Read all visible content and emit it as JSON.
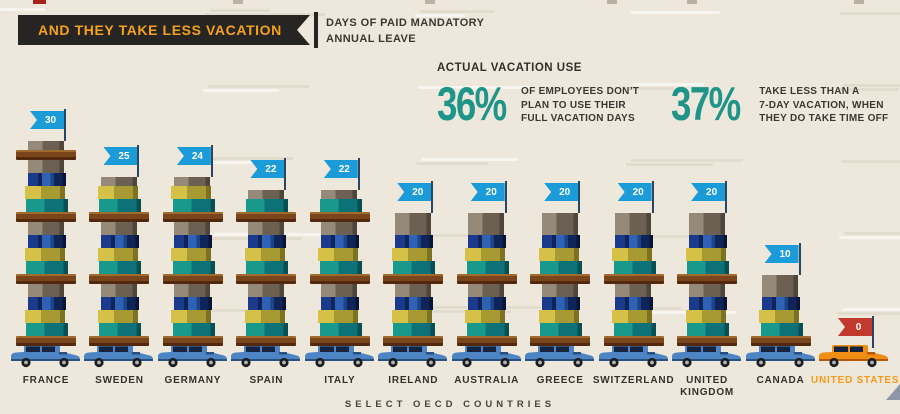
{
  "header": {
    "title": "AND THEY TAKE LESS VACATION",
    "subtitle_line1": "DAYS OF PAID MANDATORY",
    "subtitle_line2": "ANNUAL LEAVE"
  },
  "stats": {
    "heading": "ACTUAL VACATION USE",
    "items": [
      {
        "value": "36%",
        "lines": [
          "OF EMPLOYEES DON’T",
          "PLAN TO USE THEIR",
          "FULL VACATION DAYS"
        ]
      },
      {
        "value": "37%",
        "lines": [
          "TAKE LESS THAN A",
          "7-DAY VACATION, WHEN",
          "THEY DO TAKE TIME OFF"
        ]
      }
    ]
  },
  "footer": {
    "caption": "SELECT OECD COUNTRIES"
  },
  "colors": {
    "background": "#ede8db",
    "ribbon_bg": "#262524",
    "ribbon_text": "#f5a11c",
    "stat_accent": "#1f9489",
    "flag_default": "#1b9bd7",
    "flag_highlight": "#c23a2b",
    "label_default": "#33312c",
    "label_highlight": "#f39a18",
    "car_blue_body": "#4d85c4",
    "car_blue_dark": "#27517f",
    "car_orange_body": "#ef8d15",
    "car_orange_dark": "#b55a0b",
    "car_window": "#142440",
    "luggage_teal": "#18998b",
    "luggage_teal_dark": "#0c7277",
    "luggage_yellow": "#d5c148",
    "luggage_olive": "#a89a33",
    "luggage_navy": "#1b3a8c",
    "luggage_navy_dark": "#0f2459",
    "luggage_blue": "#2f62b5",
    "luggage_taupe": "#958a7a",
    "luggage_taupe_dark": "#6b6052",
    "plank_brown": "#7b451c"
  },
  "chart_data": {
    "type": "bar",
    "title": "Days of paid mandatory annual leave",
    "xlabel": "SELECT OECD COUNTRIES",
    "ylabel": "Days",
    "ylim": [
      0,
      30
    ],
    "unit": "days",
    "categories": [
      "FRANCE",
      "SWEDEN",
      "GERMANY",
      "SPAIN",
      "ITALY",
      "IRELAND",
      "AUSTRALIA",
      "GREECE",
      "SWITZERLAND",
      "UNITED KINGDOM",
      "CANADA",
      "UNITED STATES"
    ],
    "label_lines": [
      [
        "FRANCE"
      ],
      [
        "SWEDEN"
      ],
      [
        "GERMANY"
      ],
      [
        "SPAIN"
      ],
      [
        "ITALY"
      ],
      [
        "IRELAND"
      ],
      [
        "AUSTRALIA"
      ],
      [
        "GREECE"
      ],
      [
        "SWITZERLAND"
      ],
      [
        "UNITED",
        "KINGDOM"
      ],
      [
        "CANADA"
      ],
      [
        "UNITED STATES"
      ]
    ],
    "values": [
      30,
      25,
      24,
      22,
      22,
      20,
      20,
      20,
      20,
      20,
      10,
      0
    ],
    "highlight_category": "UNITED STATES",
    "legend": null,
    "grid": "faint horizontal dashes",
    "annotations": [
      {
        "text": "36% of employees don’t plan to use their full vacation days"
      },
      {
        "text": "37% take less than a 7-day vacation, when they do take time off"
      }
    ]
  }
}
